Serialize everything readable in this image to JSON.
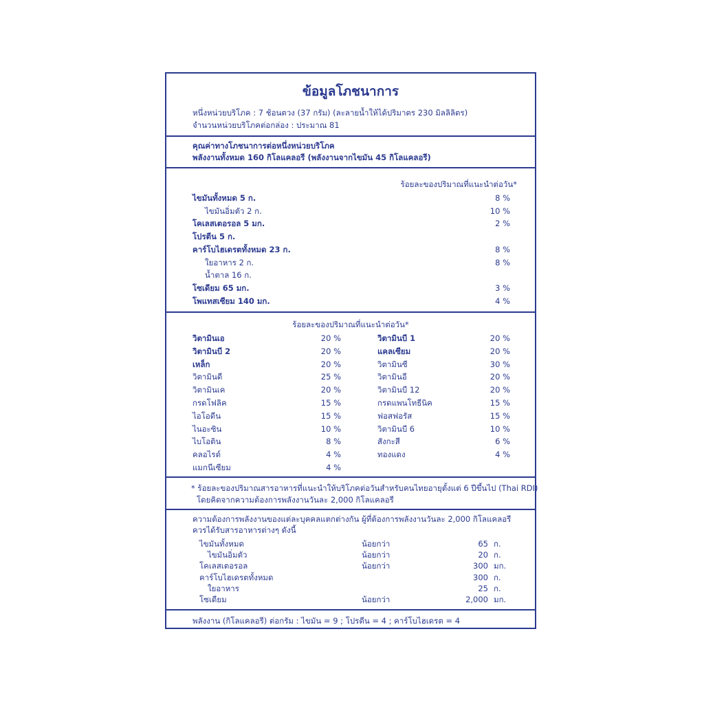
{
  "header": {
    "title": "ข้อมูลโภชนาการ",
    "serving_size": "หนึ่งหน่วยบริโภค : 7 ช้อนตวง (37 กรัม) (ละลายน้ำให้ได้ปริมาตร 230 มิลลิลิตร)",
    "servings_per_pack": "จำนวนหน่วยบริโภคต่อกล่อง : ประมาณ 81"
  },
  "per_serving": {
    "heading": "คุณค่าทางโภชนาการต่อหนึ่งหน่วยบริโภค",
    "energy": "พลังงานทั้งหมด 160 กิโลแคลอรี (พลังงานจากไขมัน 45 กิโลแคลอรี)"
  },
  "macros": {
    "column_header": "ร้อยละของปริมาณที่แนะนำต่อวัน*",
    "rows": [
      {
        "label": "ไขมันทั้งหมด 5 ก.",
        "pct": "8 %",
        "bold": true,
        "indent": false
      },
      {
        "label": "ไขมันอิ่มตัว 2 ก.",
        "pct": "10 %",
        "bold": false,
        "indent": true
      },
      {
        "label": "โคเลสเตอรอล 5 มก.",
        "pct": "2 %",
        "bold": true,
        "indent": false
      },
      {
        "label": "โปรตีน 5 ก.",
        "pct": "",
        "bold": true,
        "indent": false
      },
      {
        "label": "คาร์โบไฮเดรตทั้งหมด 23 ก.",
        "pct": "8 %",
        "bold": true,
        "indent": false
      },
      {
        "label": "ใยอาหาร 2 ก.",
        "pct": "8 %",
        "bold": false,
        "indent": true
      },
      {
        "label": "น้ำตาล 16 ก.",
        "pct": "",
        "bold": false,
        "indent": true
      },
      {
        "label": "โซเดียม 65 มก.",
        "pct": "3 %",
        "bold": true,
        "indent": false
      },
      {
        "label": "โพแทสเซียม 140 มก.",
        "pct": "4 %",
        "bold": true,
        "indent": false
      }
    ]
  },
  "micros": {
    "column_header": "ร้อยละของปริมาณที่แนะนำต่อวัน*",
    "left": [
      {
        "label": "วิตามินเอ",
        "pct": "20 %",
        "bold": true
      },
      {
        "label": "วิตามินบี 2",
        "pct": "20 %",
        "bold": true
      },
      {
        "label": "เหล็ก",
        "pct": "20 %",
        "bold": true
      },
      {
        "label": "วิตามินดี",
        "pct": "25 %",
        "bold": false
      },
      {
        "label": "วิตามินเค",
        "pct": "20 %",
        "bold": false
      },
      {
        "label": "กรดโฟลิค",
        "pct": "15 %",
        "bold": false
      },
      {
        "label": "ไอโอดีน",
        "pct": "15 %",
        "bold": false
      },
      {
        "label": "ไนอะซิน",
        "pct": "10 %",
        "bold": false
      },
      {
        "label": "ไบโอติน",
        "pct": "8 %",
        "bold": false
      },
      {
        "label": "คลอไรด์",
        "pct": "4 %",
        "bold": false
      },
      {
        "label": "แมกนีเซียม",
        "pct": "4 %",
        "bold": false
      }
    ],
    "right": [
      {
        "label": "วิตามินบี 1",
        "pct": "20 %",
        "bold": true
      },
      {
        "label": "แคลเซียม",
        "pct": "20 %",
        "bold": true
      },
      {
        "label": "วิตามินซี",
        "pct": "30 %",
        "bold": false
      },
      {
        "label": "วิตามินอี",
        "pct": "20 %",
        "bold": false
      },
      {
        "label": "วิตามินบี 12",
        "pct": "20 %",
        "bold": false
      },
      {
        "label": "กรดแพนโทธีนิค",
        "pct": "15 %",
        "bold": false
      },
      {
        "label": "ฟอสฟอรัส",
        "pct": "15 %",
        "bold": false
      },
      {
        "label": "วิตามินบี 6",
        "pct": "10 %",
        "bold": false
      },
      {
        "label": "สังกะสี",
        "pct": "6 %",
        "bold": false
      },
      {
        "label": "ทองแดง",
        "pct": "4 %",
        "bold": false
      }
    ]
  },
  "footnote": {
    "line1": "* ร้อยละของปริมาณสารอาหารที่แนะนำให้บริโภคต่อวันสำหรับคนไทยอายุตั้งแต่ 6 ปีขึ้นไป (Thai RDI)",
    "line2": "โดยคิดจากความต้องการพลังงานวันละ 2,000 กิโลแคลอรี"
  },
  "guidance": {
    "line1": "ความต้องการพลังงานของแต่ละบุคคลแตกต่างกัน ผู้ที่ต้องการพลังงานวันละ 2,000 กิโลแคลอรี",
    "line2": "ควรได้รับสารอาหารต่างๆ ดังนี้",
    "rows": [
      {
        "label": "ไขมันทั้งหมด",
        "qualifier": "น้อยกว่า",
        "amount": "65",
        "unit": "ก.",
        "indent": false
      },
      {
        "label": "ไขมันอิ่มตัว",
        "qualifier": "น้อยกว่า",
        "amount": "20",
        "unit": "ก.",
        "indent": true
      },
      {
        "label": "โคเลสเตอรอล",
        "qualifier": "น้อยกว่า",
        "amount": "300",
        "unit": "มก.",
        "indent": false
      },
      {
        "label": "คาร์โบไฮเดรตทั้งหมด",
        "qualifier": "",
        "amount": "300",
        "unit": "ก.",
        "indent": false
      },
      {
        "label": "ใยอาหาร",
        "qualifier": "",
        "amount": "25",
        "unit": "ก.",
        "indent": true
      },
      {
        "label": "โซเดียม",
        "qualifier": "น้อยกว่า",
        "amount": "2,000",
        "unit": "มก.",
        "indent": false
      }
    ]
  },
  "energy_factors": "พลังงาน (กิโลแคลอรี) ต่อกรัม  :  ไขมัน = 9  ;  โปรตีน = 4 ;  คาร์โบไฮเดรต = 4",
  "colors": {
    "ink": "#2b3a8f",
    "background": "#ffffff"
  }
}
